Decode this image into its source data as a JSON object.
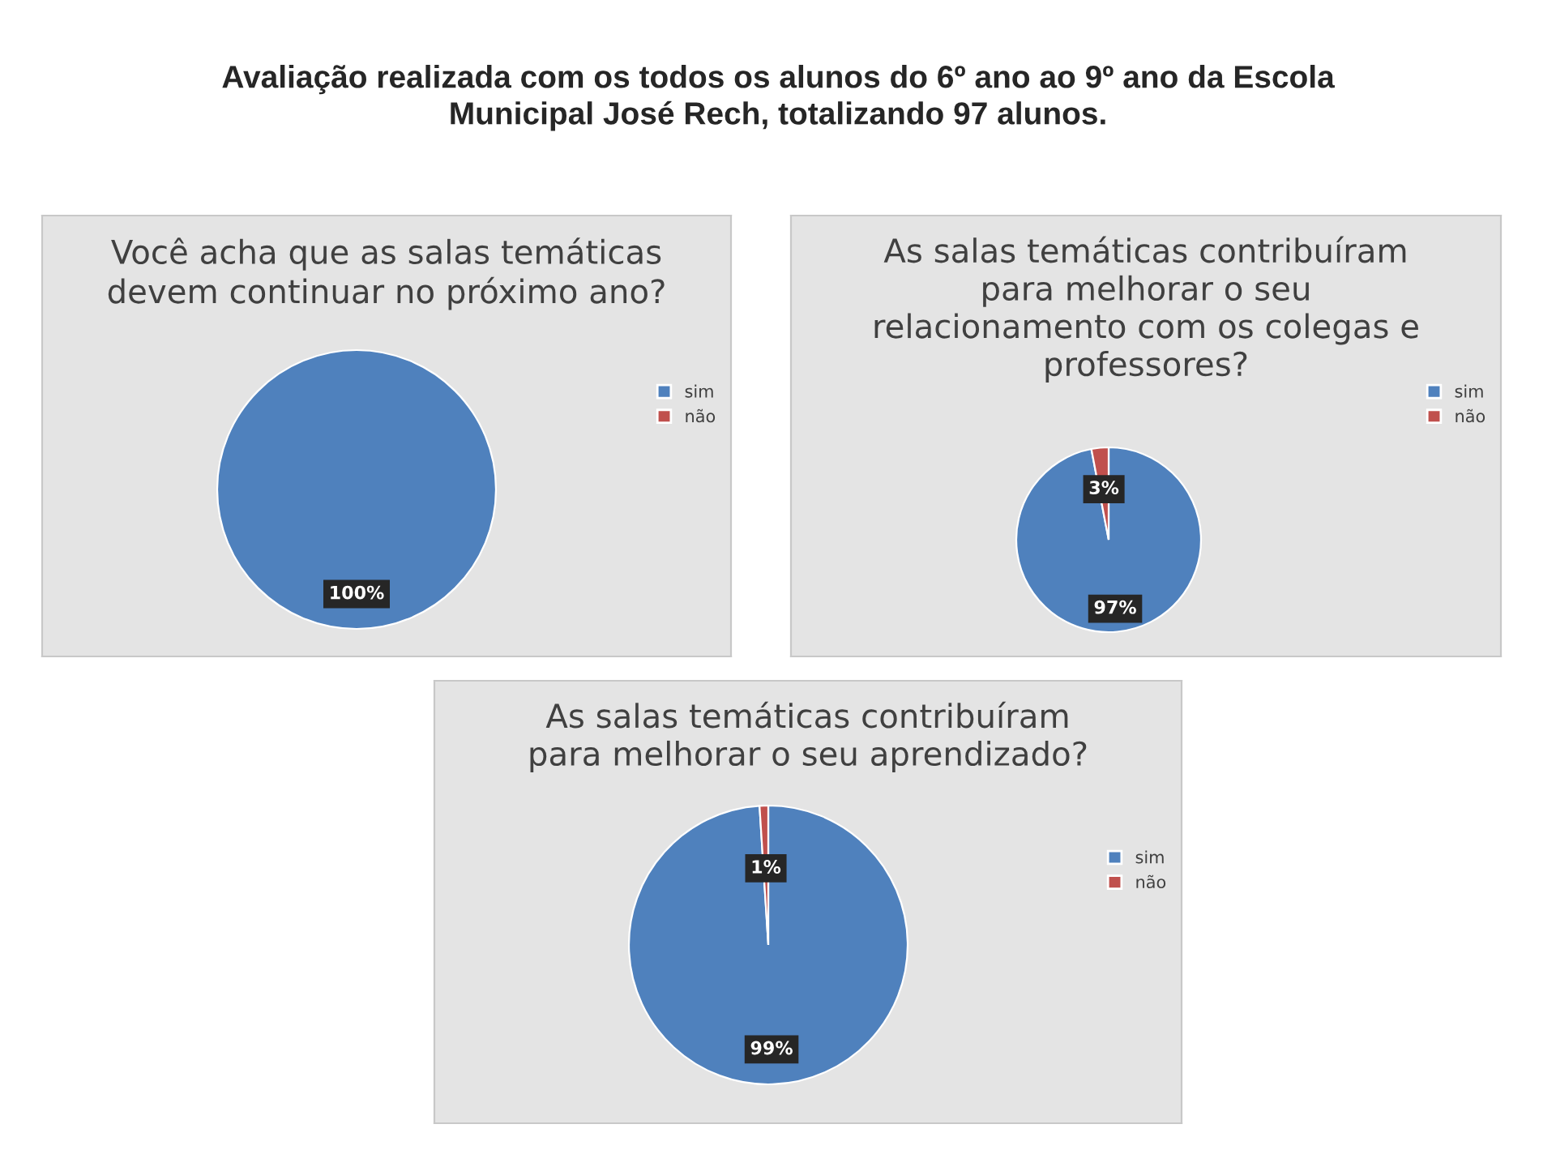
{
  "chart_data": [
    {
      "type": "pie",
      "title": "Você acha que as salas temáticas\ndevem continuar no próximo ano?",
      "annotations": [
        "Avaliação realizada com os todos os alunos do 6º ano ao 9º ano da Escola\nMunicipal José Rech, totalizando 97 alunos."
      ],
      "categories": [
        "sim",
        "não"
      ],
      "values": [
        100,
        0
      ],
      "colors": [
        "#4f81bd",
        "#c0504d"
      ],
      "value_labels": [
        "100%",
        null
      ],
      "legend": "right"
    },
    {
      "type": "pie",
      "title": "As salas temáticas contribuíram\npara melhorar o seu\nrelacionamento com os colegas e\nprofessores?",
      "categories": [
        "sim",
        "não"
      ],
      "values": [
        97,
        3
      ],
      "colors": [
        "#4f81bd",
        "#c0504d"
      ],
      "value_labels": [
        "97%",
        "3%"
      ],
      "legend": "right"
    },
    {
      "type": "pie",
      "title": "As salas temáticas contribuíram\npara melhorar o seu aprendizado?",
      "categories": [
        "sim",
        "não"
      ],
      "values": [
        99,
        1
      ],
      "colors": [
        "#4f81bd",
        "#c0504d"
      ],
      "value_labels": [
        "99%",
        "1%"
      ],
      "legend": "right"
    }
  ]
}
